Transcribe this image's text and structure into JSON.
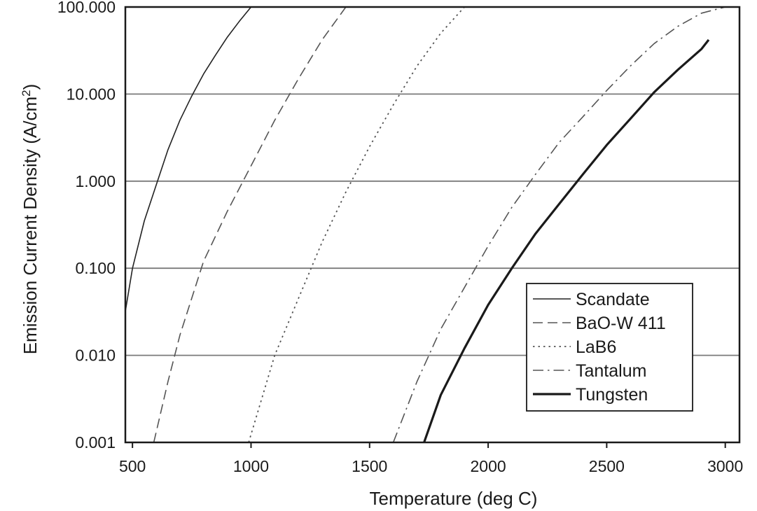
{
  "chart_data": {
    "type": "line",
    "title": "",
    "xlabel": "Temperature (deg C)",
    "ylabel": "Emission Current Density (A/cm",
    "ylabel_sup": "2",
    "ylabel_close": ")",
    "xlim": [
      470,
      3060
    ],
    "ylim": [
      0.001,
      100
    ],
    "yscale": "log",
    "grid": "horizontal",
    "legend_position": "bottom-right",
    "x_ticks": [
      {
        "value": 500,
        "label": "500"
      },
      {
        "value": 1000,
        "label": "1000"
      },
      {
        "value": 1500,
        "label": "1500"
      },
      {
        "value": 2000,
        "label": "2000"
      },
      {
        "value": 2500,
        "label": "2500"
      },
      {
        "value": 3000,
        "label": "3000"
      }
    ],
    "y_ticks": [
      {
        "value": 100,
        "label": "100.000"
      },
      {
        "value": 10,
        "label": "10.000"
      },
      {
        "value": 1,
        "label": "1.000"
      },
      {
        "value": 0.1,
        "label": "0.100"
      },
      {
        "value": 0.01,
        "label": "0.010"
      },
      {
        "value": 0.001,
        "label": "0.001"
      }
    ],
    "series": [
      {
        "name": "Scandate",
        "style": "solid",
        "width": 1.6,
        "color": "#222222",
        "points": [
          [
            470,
            0.032
          ],
          [
            500,
            0.1
          ],
          [
            550,
            0.35
          ],
          [
            600,
            0.9
          ],
          [
            650,
            2.3
          ],
          [
            700,
            5.0
          ],
          [
            750,
            9.5
          ],
          [
            800,
            17
          ],
          [
            850,
            28
          ],
          [
            900,
            45
          ],
          [
            950,
            68
          ],
          [
            1000,
            100
          ]
        ]
      },
      {
        "name": "BaO-W 411",
        "style": "dashed",
        "width": 1.6,
        "color": "#555555",
        "points": [
          [
            590,
            0.001
          ],
          [
            650,
            0.005
          ],
          [
            700,
            0.017
          ],
          [
            800,
            0.12
          ],
          [
            900,
            0.45
          ],
          [
            1000,
            1.5
          ],
          [
            1100,
            5.0
          ],
          [
            1200,
            15
          ],
          [
            1300,
            42
          ],
          [
            1400,
            100
          ]
        ]
      },
      {
        "name": "LaB6",
        "style": "dotted",
        "width": 1.8,
        "color": "#555555",
        "points": [
          [
            990,
            0.001
          ],
          [
            1100,
            0.01
          ],
          [
            1200,
            0.045
          ],
          [
            1300,
            0.2
          ],
          [
            1400,
            0.75
          ],
          [
            1500,
            2.5
          ],
          [
            1600,
            7.5
          ],
          [
            1700,
            21
          ],
          [
            1800,
            50
          ],
          [
            1900,
            100
          ]
        ]
      },
      {
        "name": "Tantalum",
        "style": "dashdot",
        "width": 1.6,
        "color": "#555555",
        "points": [
          [
            1600,
            0.001
          ],
          [
            1700,
            0.005
          ],
          [
            1800,
            0.02
          ],
          [
            1900,
            0.06
          ],
          [
            2000,
            0.18
          ],
          [
            2100,
            0.5
          ],
          [
            2200,
            1.2
          ],
          [
            2300,
            2.8
          ],
          [
            2400,
            5.5
          ],
          [
            2500,
            11
          ],
          [
            2600,
            21
          ],
          [
            2700,
            38
          ],
          [
            2800,
            60
          ],
          [
            2900,
            85
          ],
          [
            3000,
            100
          ]
        ]
      },
      {
        "name": "Tungsten",
        "style": "solid",
        "width": 3.2,
        "color": "#1a1a1a",
        "points": [
          [
            1730,
            0.001
          ],
          [
            1800,
            0.0035
          ],
          [
            1900,
            0.012
          ],
          [
            2000,
            0.038
          ],
          [
            2100,
            0.1
          ],
          [
            2200,
            0.25
          ],
          [
            2300,
            0.55
          ],
          [
            2400,
            1.2
          ],
          [
            2500,
            2.6
          ],
          [
            2600,
            5.2
          ],
          [
            2700,
            10.5
          ],
          [
            2800,
            19
          ],
          [
            2900,
            33
          ],
          [
            2930,
            42
          ]
        ]
      }
    ]
  }
}
